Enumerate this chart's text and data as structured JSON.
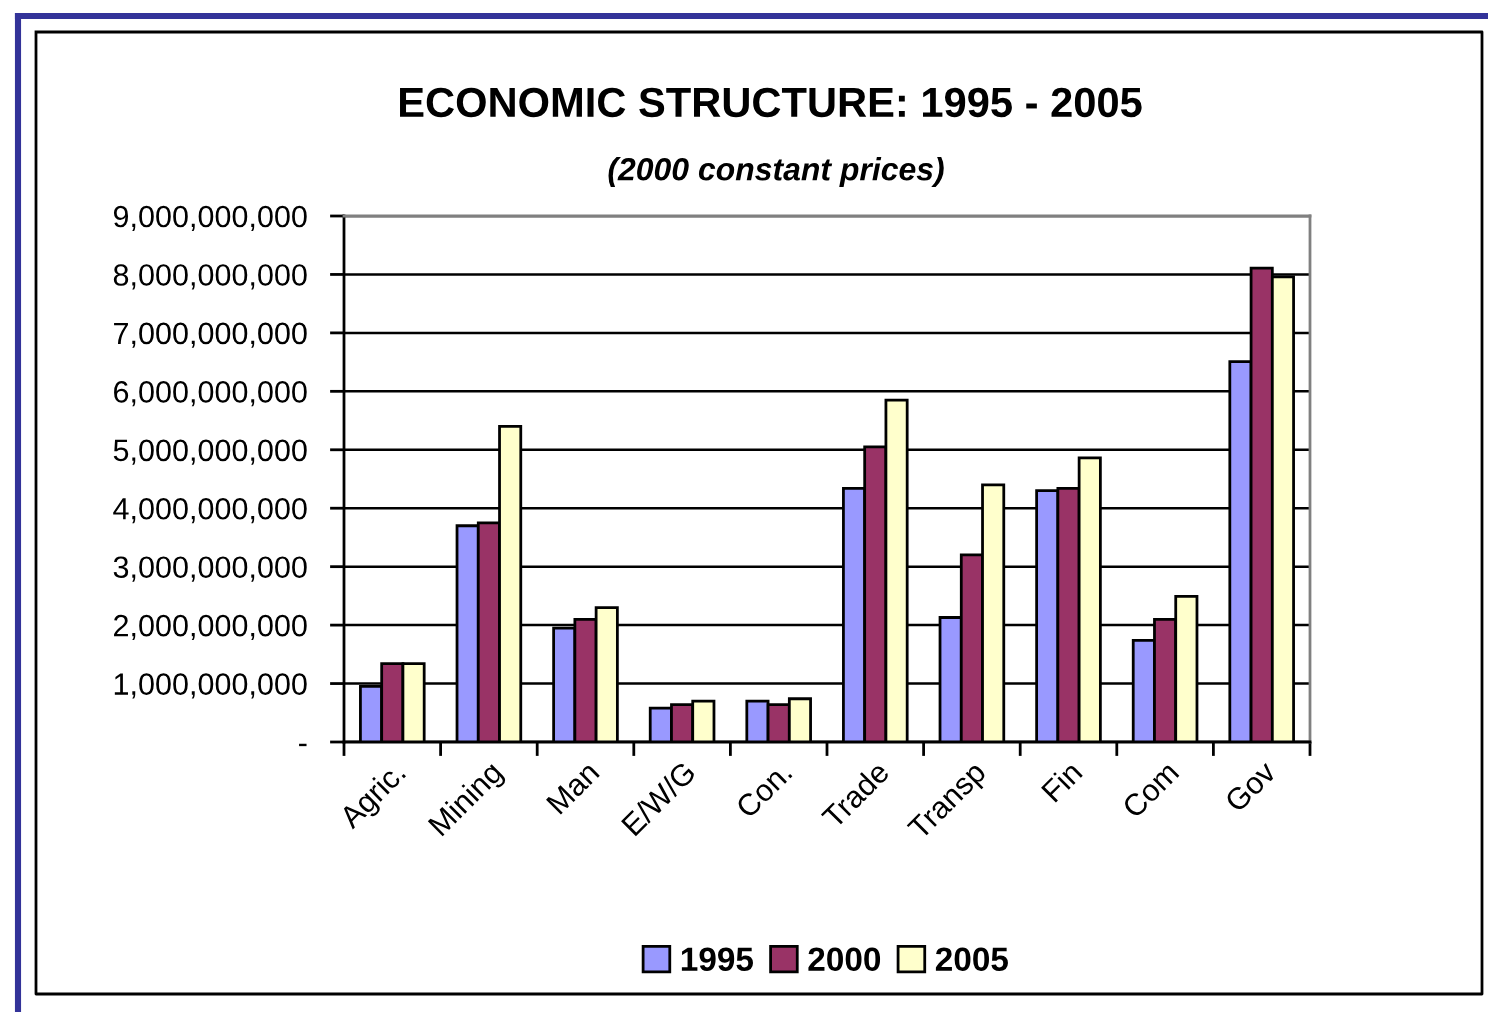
{
  "chart_data": {
    "type": "bar",
    "title": "ECONOMIC STRUCTURE: 1995 - 2005",
    "subtitle": "(2000 constant prices)",
    "categories": [
      "Agric.",
      "Mining",
      "Man",
      "E/W/G",
      "Con.",
      "Trade",
      "Transp",
      "Fin",
      "Com",
      "Gov"
    ],
    "series": [
      {
        "name": "1995",
        "color": "#9999ff",
        "values": [
          950000000,
          3700000000,
          1950000000,
          580000000,
          700000000,
          4340000000,
          2130000000,
          4300000000,
          1740000000,
          6510000000
        ]
      },
      {
        "name": "2000",
        "color": "#993366",
        "values": [
          1340000000,
          3750000000,
          2100000000,
          640000000,
          640000000,
          5050000000,
          3200000000,
          4340000000,
          2100000000,
          8110000000
        ]
      },
      {
        "name": "2005",
        "color": "#ffffcc",
        "values": [
          1340000000,
          5400000000,
          2300000000,
          700000000,
          740000000,
          5850000000,
          4400000000,
          4860000000,
          2490000000,
          7960000000
        ]
      }
    ],
    "ylim": [
      0,
      9000000000
    ],
    "yticks": [
      {
        "value": 0,
        "label": "-"
      },
      {
        "value": 1000000000,
        "label": "1,000,000,000"
      },
      {
        "value": 2000000000,
        "label": "2,000,000,000"
      },
      {
        "value": 3000000000,
        "label": "3,000,000,000"
      },
      {
        "value": 4000000000,
        "label": "4,000,000,000"
      },
      {
        "value": 5000000000,
        "label": "5,000,000,000"
      },
      {
        "value": 6000000000,
        "label": "6,000,000,000"
      },
      {
        "value": 7000000000,
        "label": "7,000,000,000"
      },
      {
        "value": 8000000000,
        "label": "8,000,000,000"
      },
      {
        "value": 9000000000,
        "label": "9,000,000,000"
      }
    ],
    "grid": "y",
    "legend": "bottom"
  }
}
